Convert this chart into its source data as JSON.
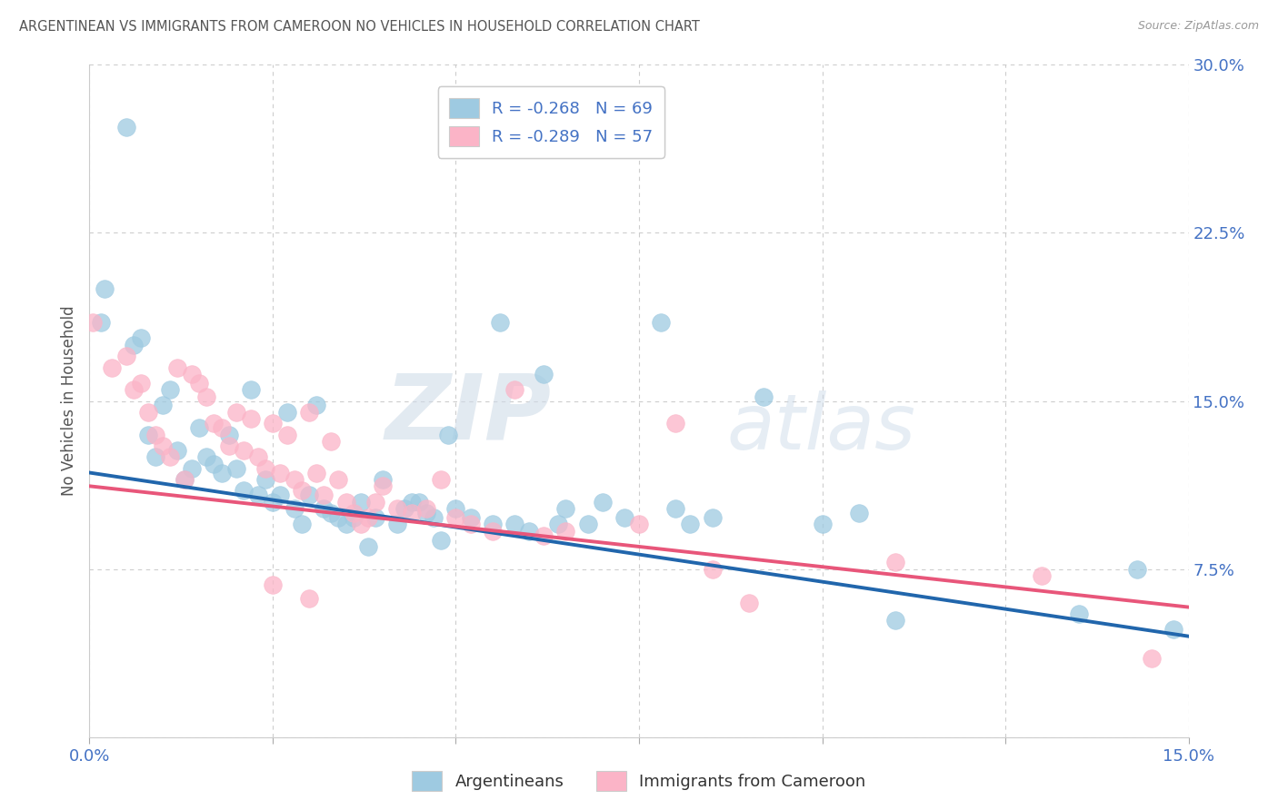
{
  "title": "ARGENTINEAN VS IMMIGRANTS FROM CAMEROON NO VEHICLES IN HOUSEHOLD CORRELATION CHART",
  "source": "Source: ZipAtlas.com",
  "ylabel": "No Vehicles in Household",
  "ytick_labels": [
    "",
    "7.5%",
    "15.0%",
    "22.5%",
    "30.0%"
  ],
  "ytick_values": [
    0.0,
    7.5,
    15.0,
    22.5,
    30.0
  ],
  "xlim": [
    0.0,
    15.0
  ],
  "ylim": [
    0.0,
    30.0
  ],
  "legend_bottom_blue": "Argentineans",
  "legend_bottom_pink": "Immigrants from Cameroon",
  "blue_color": "#9ecae1",
  "pink_color": "#fbb4c7",
  "blue_line_color": "#2166ac",
  "pink_line_color": "#e8567a",
  "watermark_zip": "ZIP",
  "watermark_atlas": "atlas",
  "blue_R": -0.268,
  "blue_N": 69,
  "pink_R": -0.289,
  "pink_N": 57,
  "blue_scatter": [
    [
      0.15,
      18.5
    ],
    [
      0.5,
      27.2
    ],
    [
      0.6,
      17.5
    ],
    [
      0.7,
      17.8
    ],
    [
      0.8,
      13.5
    ],
    [
      0.9,
      12.5
    ],
    [
      1.0,
      14.8
    ],
    [
      1.1,
      15.5
    ],
    [
      1.2,
      12.8
    ],
    [
      1.3,
      11.5
    ],
    [
      1.4,
      12.0
    ],
    [
      1.5,
      13.8
    ],
    [
      1.6,
      12.5
    ],
    [
      1.7,
      12.2
    ],
    [
      1.8,
      11.8
    ],
    [
      1.9,
      13.5
    ],
    [
      2.0,
      12.0
    ],
    [
      2.1,
      11.0
    ],
    [
      2.2,
      15.5
    ],
    [
      2.3,
      10.8
    ],
    [
      2.4,
      11.5
    ],
    [
      2.5,
      10.5
    ],
    [
      2.6,
      10.8
    ],
    [
      2.7,
      14.5
    ],
    [
      2.8,
      10.2
    ],
    [
      2.9,
      9.5
    ],
    [
      3.0,
      10.8
    ],
    [
      3.1,
      14.8
    ],
    [
      3.2,
      10.2
    ],
    [
      3.3,
      10.0
    ],
    [
      3.4,
      9.8
    ],
    [
      3.5,
      9.5
    ],
    [
      3.6,
      9.8
    ],
    [
      3.7,
      10.5
    ],
    [
      3.8,
      8.5
    ],
    [
      3.9,
      9.8
    ],
    [
      4.0,
      11.5
    ],
    [
      4.2,
      9.5
    ],
    [
      4.3,
      10.2
    ],
    [
      4.4,
      10.5
    ],
    [
      4.5,
      10.5
    ],
    [
      4.6,
      10.0
    ],
    [
      4.7,
      9.8
    ],
    [
      4.8,
      8.8
    ],
    [
      4.9,
      13.5
    ],
    [
      5.0,
      10.2
    ],
    [
      5.2,
      9.8
    ],
    [
      5.5,
      9.5
    ],
    [
      5.6,
      18.5
    ],
    [
      5.8,
      9.5
    ],
    [
      6.0,
      9.2
    ],
    [
      6.2,
      16.2
    ],
    [
      6.4,
      9.5
    ],
    [
      6.5,
      10.2
    ],
    [
      6.8,
      9.5
    ],
    [
      7.0,
      10.5
    ],
    [
      7.3,
      9.8
    ],
    [
      7.8,
      18.5
    ],
    [
      8.0,
      10.2
    ],
    [
      8.2,
      9.5
    ],
    [
      8.5,
      9.8
    ],
    [
      9.2,
      15.2
    ],
    [
      10.0,
      9.5
    ],
    [
      10.5,
      10.0
    ],
    [
      11.0,
      5.2
    ],
    [
      13.5,
      5.5
    ],
    [
      14.8,
      4.8
    ],
    [
      14.3,
      7.5
    ],
    [
      0.2,
      20.0
    ]
  ],
  "pink_scatter": [
    [
      0.05,
      18.5
    ],
    [
      0.3,
      16.5
    ],
    [
      0.5,
      17.0
    ],
    [
      0.6,
      15.5
    ],
    [
      0.7,
      15.8
    ],
    [
      0.8,
      14.5
    ],
    [
      0.9,
      13.5
    ],
    [
      1.0,
      13.0
    ],
    [
      1.1,
      12.5
    ],
    [
      1.2,
      16.5
    ],
    [
      1.3,
      11.5
    ],
    [
      1.4,
      16.2
    ],
    [
      1.5,
      15.8
    ],
    [
      1.6,
      15.2
    ],
    [
      1.7,
      14.0
    ],
    [
      1.8,
      13.8
    ],
    [
      1.9,
      13.0
    ],
    [
      2.0,
      14.5
    ],
    [
      2.1,
      12.8
    ],
    [
      2.2,
      14.2
    ],
    [
      2.3,
      12.5
    ],
    [
      2.4,
      12.0
    ],
    [
      2.5,
      14.0
    ],
    [
      2.6,
      11.8
    ],
    [
      2.7,
      13.5
    ],
    [
      2.8,
      11.5
    ],
    [
      2.9,
      11.0
    ],
    [
      3.0,
      14.5
    ],
    [
      3.1,
      11.8
    ],
    [
      3.2,
      10.8
    ],
    [
      3.3,
      13.2
    ],
    [
      3.4,
      11.5
    ],
    [
      3.5,
      10.5
    ],
    [
      3.6,
      10.0
    ],
    [
      3.7,
      9.5
    ],
    [
      3.8,
      9.8
    ],
    [
      3.9,
      10.5
    ],
    [
      4.0,
      11.2
    ],
    [
      4.2,
      10.2
    ],
    [
      4.4,
      10.0
    ],
    [
      4.6,
      10.2
    ],
    [
      4.8,
      11.5
    ],
    [
      5.0,
      9.8
    ],
    [
      5.2,
      9.5
    ],
    [
      5.5,
      9.2
    ],
    [
      5.8,
      15.5
    ],
    [
      6.2,
      9.0
    ],
    [
      6.5,
      9.2
    ],
    [
      7.5,
      9.5
    ],
    [
      8.0,
      14.0
    ],
    [
      8.5,
      7.5
    ],
    [
      9.0,
      6.0
    ],
    [
      11.0,
      7.8
    ],
    [
      13.0,
      7.2
    ],
    [
      14.5,
      3.5
    ],
    [
      2.5,
      6.8
    ],
    [
      3.0,
      6.2
    ]
  ],
  "blue_trend": {
    "x_start": 0.0,
    "y_start": 11.8,
    "x_end": 15.0,
    "y_end": 4.5
  },
  "pink_trend": {
    "x_start": 0.0,
    "y_start": 11.2,
    "x_end": 15.0,
    "y_end": 5.8
  },
  "background_color": "#ffffff",
  "grid_color": "#c8c8c8",
  "title_color": "#555555",
  "right_ytick_color": "#4472c4",
  "xtick_color": "#4472c4"
}
